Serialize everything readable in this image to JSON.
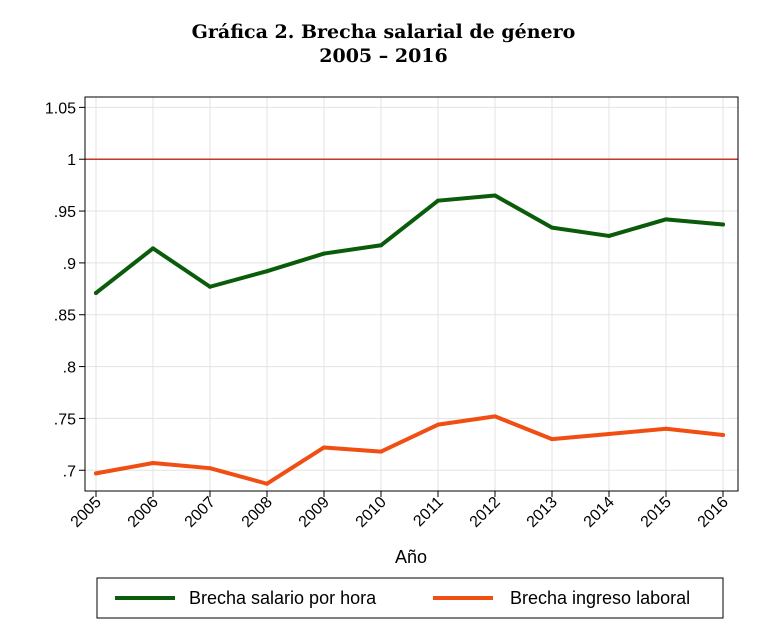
{
  "chart_data": {
    "type": "line",
    "title": "Gráfica 2. Brecha salarial de género",
    "subtitle": "2005 – 2016",
    "xlabel": "Año",
    "ylabel": "",
    "x": [
      "2005",
      "2006",
      "2007",
      "2008",
      "2009",
      "2010",
      "2011",
      "2012",
      "2013",
      "2014",
      "2015",
      "2016"
    ],
    "ylim": [
      0.68,
      1.06
    ],
    "yticks": [
      {
        "value": 0.7,
        "label": ".7"
      },
      {
        "value": 0.75,
        "label": ".75"
      },
      {
        "value": 0.8,
        "label": ".8"
      },
      {
        "value": 0.85,
        "label": ".85"
      },
      {
        "value": 0.9,
        "label": ".9"
      },
      {
        "value": 0.95,
        "label": ".95"
      },
      {
        "value": 1.0,
        "label": "1"
      },
      {
        "value": 1.05,
        "label": "1.05"
      }
    ],
    "reference_line": {
      "value": 1.0,
      "color": "#c0392b"
    },
    "grid": true,
    "legend_position": "bottom",
    "series": [
      {
        "name": "Brecha salario por hora",
        "color": "#0a5c0a",
        "values": [
          0.871,
          0.914,
          0.877,
          0.892,
          0.909,
          0.917,
          0.96,
          0.965,
          0.934,
          0.926,
          0.942,
          0.937
        ]
      },
      {
        "name": "Brecha ingreso laboral",
        "color": "#f04e12",
        "values": [
          0.697,
          0.707,
          0.702,
          0.687,
          0.722,
          0.718,
          0.744,
          0.752,
          0.73,
          0.735,
          0.74,
          0.734
        ]
      }
    ]
  }
}
